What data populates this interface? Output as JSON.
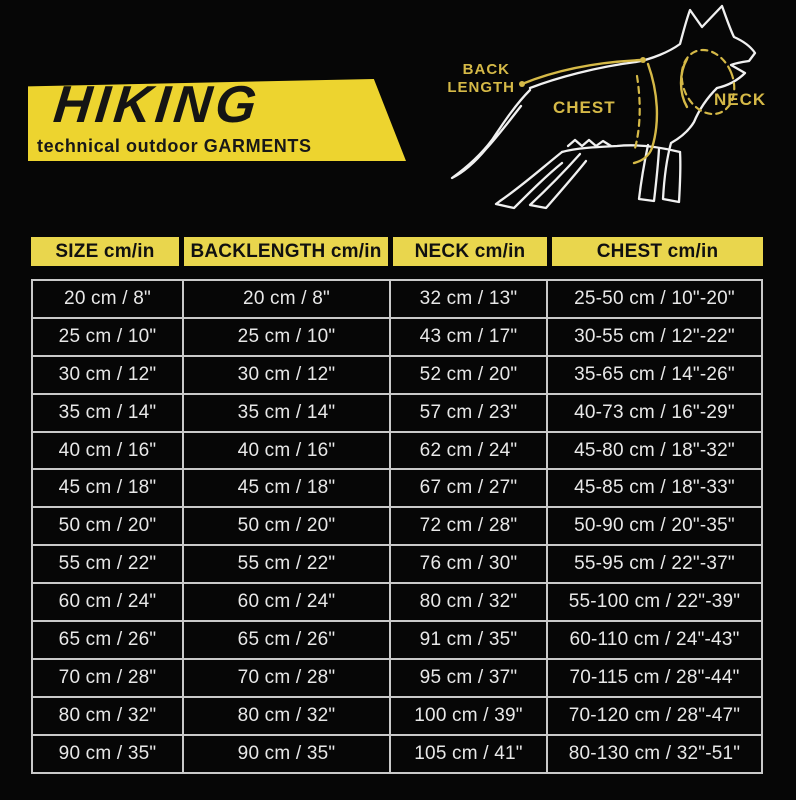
{
  "brand": {
    "name": "HIKING",
    "tagline": "technical outdoor GARMENTS"
  },
  "diagram": {
    "labels": {
      "back_length_line1": "BACK",
      "back_length_line2": "LENGTH",
      "chest": "CHEST",
      "neck": "NECK"
    }
  },
  "colors": {
    "brand_yellow": "#edd42f",
    "header_yellow": "#e9d64d",
    "label_gold": "#d5b947",
    "table_line": "#c9c9c9",
    "row_text": "#e8e8e8",
    "background": "#060606"
  },
  "table": {
    "headers": [
      "SIZE cm/in",
      "BACKLENGTH cm/in",
      "NECK cm/in",
      "CHEST cm/in"
    ],
    "rows": [
      [
        "20 cm / 8\"",
        "20 cm / 8\"",
        "32 cm / 13\"",
        "25-50 cm / 10\"-20\""
      ],
      [
        "25 cm / 10\"",
        "25 cm / 10\"",
        "43 cm / 17\"",
        "30-55 cm / 12\"-22\""
      ],
      [
        "30 cm / 12\"",
        "30 cm / 12\"",
        "52 cm / 20\"",
        "35-65 cm / 14\"-26\""
      ],
      [
        "35 cm / 14\"",
        "35 cm / 14\"",
        "57 cm / 23\"",
        "40-73 cm / 16\"-29\""
      ],
      [
        "40 cm / 16\"",
        "40 cm / 16\"",
        "62 cm / 24\"",
        "45-80 cm / 18\"-32\""
      ],
      [
        "45 cm / 18\"",
        "45 cm / 18\"",
        "67 cm / 27\"",
        "45-85 cm / 18\"-33\""
      ],
      [
        "50 cm / 20\"",
        "50 cm / 20\"",
        "72 cm / 28\"",
        "50-90 cm / 20\"-35\""
      ],
      [
        "55 cm / 22\"",
        "55 cm / 22\"",
        "76 cm / 30\"",
        "55-95 cm / 22\"-37\""
      ],
      [
        "60 cm / 24\"",
        "60 cm / 24\"",
        "80 cm / 32\"",
        "55-100 cm / 22\"-39\""
      ],
      [
        "65 cm / 26\"",
        "65 cm / 26\"",
        "91 cm / 35\"",
        "60-110 cm / 24\"-43\""
      ],
      [
        "70 cm / 28\"",
        "70 cm / 28\"",
        "95 cm / 37\"",
        "70-115 cm / 28\"-44\""
      ],
      [
        "80 cm / 32\"",
        "80 cm / 32\"",
        "100 cm / 39\"",
        "70-120 cm / 28\"-47\""
      ],
      [
        "90 cm / 35\"",
        "90 cm / 35\"",
        "105 cm / 41\"",
        "80-130 cm / 32\"-51\""
      ]
    ]
  }
}
